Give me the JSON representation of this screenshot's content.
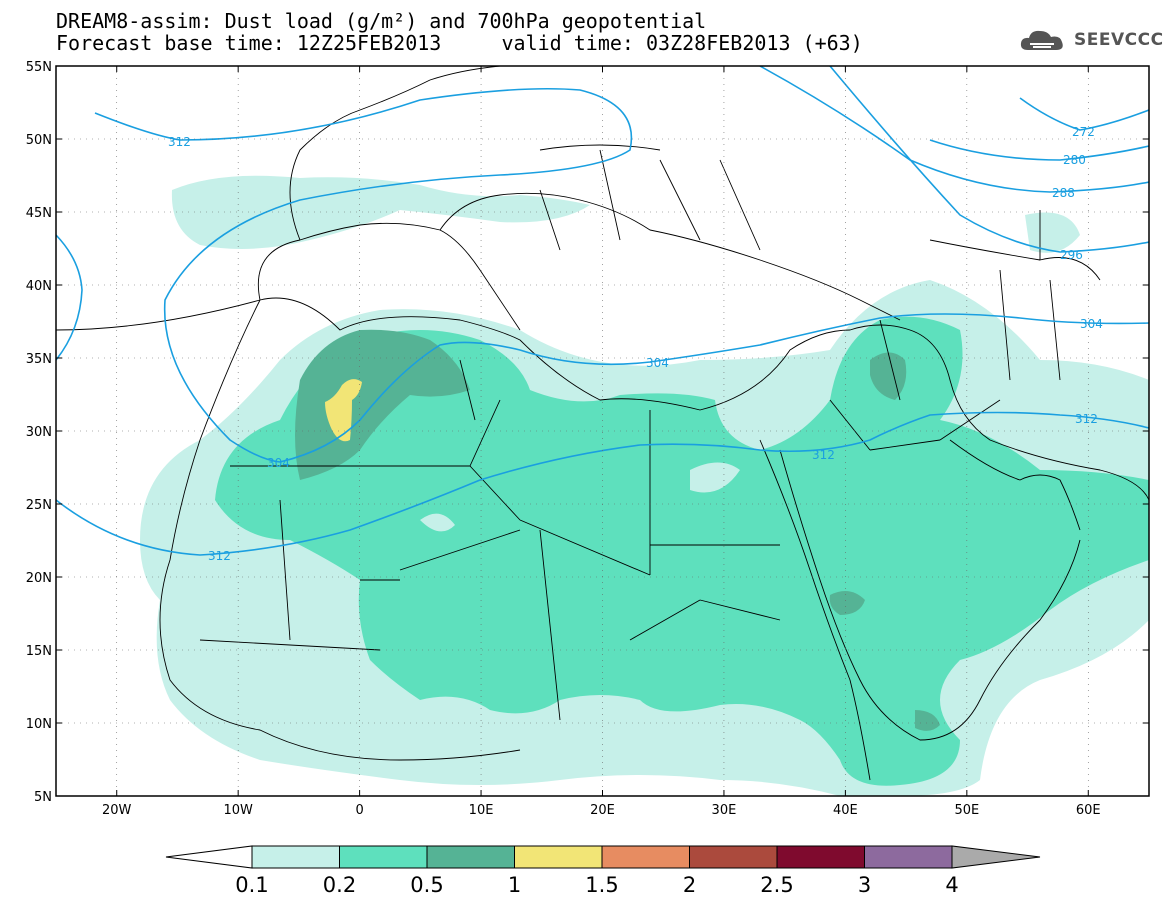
{
  "header": {
    "title_line1": "DREAM8-assim: Dust load (g/m²) and 700hPa geopotential",
    "title_line2": "Forecast base time: 12Z25FEB2013     valid time: 03Z28FEB2013 (+63)"
  },
  "logo": {
    "text": "SEEVCCC",
    "icon": "cloud-icon"
  },
  "map": {
    "lon_labels": [
      "20W",
      "10W",
      "0",
      "10E",
      "20E",
      "30E",
      "40E",
      "50E",
      "60E"
    ],
    "lat_labels": [
      "55N",
      "50N",
      "45N",
      "40N",
      "35N",
      "30N",
      "25N",
      "20N",
      "15N",
      "10N",
      "5N"
    ],
    "contour_labels": [
      "312",
      "272",
      "280",
      "288",
      "296",
      "304",
      "304",
      "304",
      "312",
      "312",
      "312"
    ],
    "contour_color": "#1a9fe0",
    "coastline_color": "#000000"
  },
  "colorbar": {
    "labels": [
      "0.1",
      "0.2",
      "0.5",
      "1",
      "1.5",
      "2",
      "2.5",
      "3",
      "4"
    ],
    "colors": [
      "#c6f0e9",
      "#5ee0bd",
      "#55b395",
      "#f2e576",
      "#e78c61",
      "#ab4a3d",
      "#7f0a2e",
      "#8d6a9e",
      "#aaaaaa"
    ],
    "low_color": "#ffffff",
    "high_color": "#aaaaaa"
  }
}
